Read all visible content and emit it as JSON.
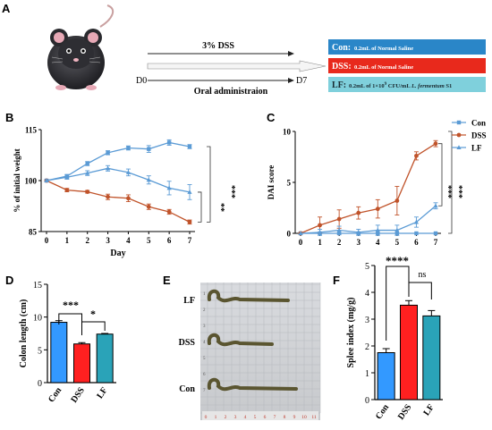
{
  "panels": {
    "A": {
      "letter": "A",
      "arrow_top_label": "3% DSS",
      "day_start": "D0",
      "day_end": "D7",
      "arrow_bottom_label": "Oral administraion",
      "groups": [
        {
          "name": "Con:",
          "desc": "0.2mL of Normal Saline",
          "color": "#2a86c8",
          "text_color": "#ffffff"
        },
        {
          "name": "DSS:",
          "desc": "0.2mL of Normal Saline",
          "color": "#e8291c",
          "text_color": "#ffffff"
        },
        {
          "name": "LF:",
          "desc_pre": "0.2mL of 1×10",
          "desc_exp": "9",
          "desc_mid": " CFU/mL ",
          "desc_italic": "L. fermentum",
          "desc_post": " S1",
          "color": "#7fd0dc",
          "text_color": "#1a2a30"
        }
      ]
    },
    "B": {
      "letter": "B",
      "sig_outer": "***",
      "sig_inner": "**"
    },
    "C": {
      "letter": "C",
      "sig_outer": "***",
      "sig_inner": "***"
    },
    "D": {
      "letter": "D",
      "sig_1": "***",
      "sig_2": "*"
    },
    "E": {
      "letter": "E",
      "rows": [
        "LF",
        "DSS",
        "Con"
      ],
      "ruler_numbers": [
        "0",
        "1",
        "2",
        "3",
        "4",
        "5",
        "6",
        "7",
        "8",
        "9",
        "10",
        "11"
      ],
      "side_numbers": [
        "1",
        "2",
        "3",
        "4",
        "5",
        "6",
        "7"
      ]
    },
    "F": {
      "letter": "F",
      "sig_1": "****",
      "sig_2": "ns"
    }
  },
  "chart_data": [
    {
      "panel": "B",
      "type": "line",
      "ylabel": "% of initial weight",
      "xlabel": "Day",
      "x": [
        0,
        1,
        2,
        3,
        4,
        5,
        6,
        7
      ],
      "ylim": [
        85,
        115
      ],
      "yticks": [
        85,
        100,
        115
      ],
      "series": [
        {
          "name": "Con",
          "color": "#5b9bd5",
          "marker": "square",
          "values": [
            100,
            101.3,
            105.0,
            108.2,
            109.6,
            109.3,
            111.2,
            110.0
          ],
          "errors": [
            0.3,
            0.5,
            0.6,
            0.6,
            0.6,
            1.0,
            0.8,
            0.6
          ]
        },
        {
          "name": "DSS",
          "color": "#c0532a",
          "marker": "circle",
          "values": [
            100,
            97.2,
            96.7,
            95.2,
            94.8,
            92.3,
            90.8,
            87.8
          ],
          "errors": [
            0.3,
            0.5,
            0.4,
            0.8,
            1.0,
            0.8,
            0.7,
            0.6
          ]
        },
        {
          "name": "LF",
          "color": "#5b9bd5",
          "marker": "triangle",
          "values": [
            100,
            101.0,
            102.2,
            103.6,
            102.4,
            100.2,
            97.8,
            96.6
          ],
          "errors": [
            0.3,
            0.6,
            0.7,
            0.8,
            1.0,
            1.2,
            2.0,
            2.2
          ]
        }
      ]
    },
    {
      "panel": "C",
      "type": "line",
      "ylabel": "DAI score",
      "xlabel": "",
      "x": [
        0,
        1,
        2,
        3,
        4,
        5,
        6,
        7
      ],
      "ylim": [
        0,
        10
      ],
      "yticks": [
        0,
        5,
        10
      ],
      "legend": [
        "Con",
        "DSS",
        "LF"
      ],
      "series": [
        {
          "name": "Con",
          "color": "#5b9bd5",
          "marker": "square",
          "values": [
            0,
            0,
            0,
            0,
            0,
            0,
            0,
            0
          ],
          "errors": [
            0,
            0,
            0,
            0,
            0,
            0,
            0,
            0
          ]
        },
        {
          "name": "DSS",
          "color": "#c0532a",
          "marker": "circle",
          "values": [
            0,
            0.8,
            1.4,
            2.0,
            2.4,
            3.2,
            7.6,
            8.8
          ],
          "errors": [
            0,
            0.8,
            0.9,
            0.6,
            0.9,
            1.4,
            0.4,
            0.3
          ]
        },
        {
          "name": "LF",
          "color": "#5b9bd5",
          "marker": "triangle",
          "values": [
            0,
            0.1,
            0.3,
            0.1,
            0.3,
            0.3,
            1.1,
            2.7
          ],
          "errors": [
            0,
            0.3,
            0.4,
            0.3,
            0.5,
            0.5,
            0.5,
            0.3
          ]
        }
      ]
    },
    {
      "panel": "D",
      "type": "bar",
      "ylabel": "Colon length (cm)",
      "categories": [
        "Con",
        "DSS",
        "LF"
      ],
      "values": [
        9.2,
        5.9,
        7.4
      ],
      "errors": [
        0.25,
        0.2,
        0.1
      ],
      "colors": [
        "#3399ff",
        "#ff2020",
        "#2aa3b8"
      ],
      "ylim": [
        0,
        15
      ],
      "yticks": [
        0,
        5,
        10,
        15
      ]
    },
    {
      "panel": "F",
      "type": "bar",
      "ylabel": "Splee index (mg/g)",
      "categories": [
        "Con",
        "DSS",
        "LF"
      ],
      "values": [
        1.75,
        3.52,
        3.12
      ],
      "errors": [
        0.15,
        0.17,
        0.2
      ],
      "colors": [
        "#3399ff",
        "#ff2020",
        "#2aa3b8"
      ],
      "ylim": [
        0,
        5
      ],
      "yticks": [
        0,
        1,
        2,
        3,
        4,
        5
      ]
    }
  ]
}
